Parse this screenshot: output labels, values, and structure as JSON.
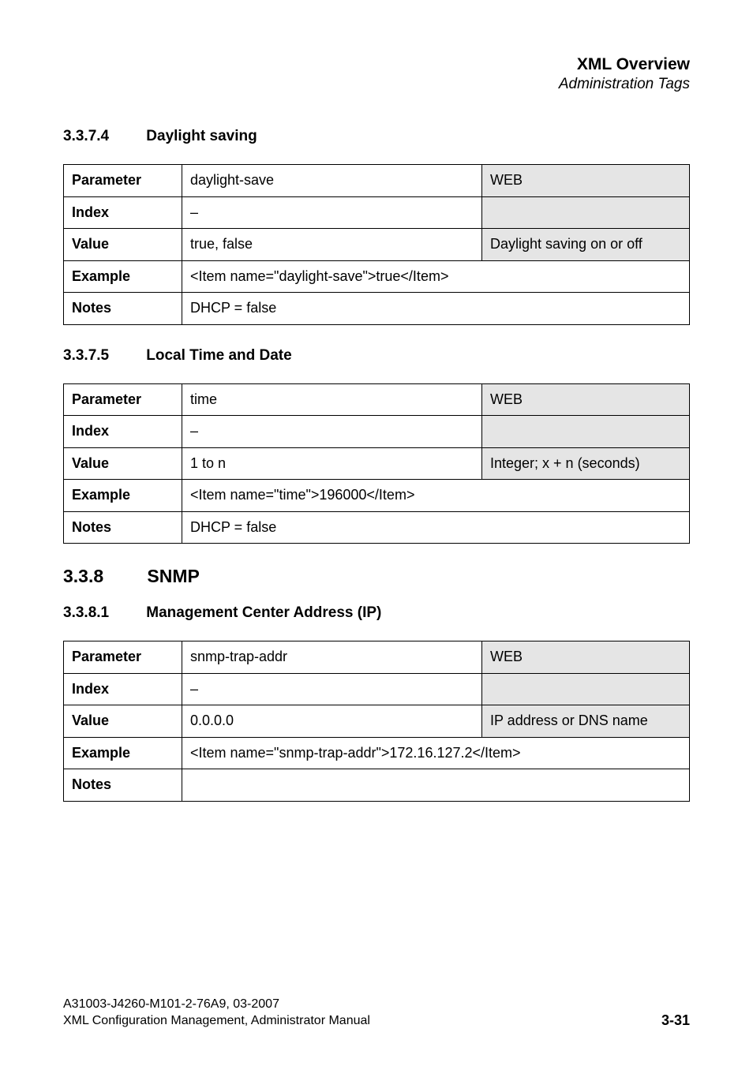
{
  "header": {
    "title": "XML Overview",
    "subtitle": "Administration Tags"
  },
  "sections": [
    {
      "number": "3.3.7.4",
      "title": "Daylight saving",
      "level": "h3",
      "table": {
        "parameter": "daylight-save",
        "parameter_right": "WEB",
        "index": "–",
        "value": "true, false",
        "value_right": "Daylight saving on or off",
        "example": "<Item name=\"daylight-save\">true</Item>",
        "notes": "DHCP = false"
      }
    },
    {
      "number": "3.3.7.5",
      "title": "Local Time and Date",
      "level": "h3",
      "table": {
        "parameter": "time",
        "parameter_right": "WEB",
        "index": "–",
        "value": "1 to n",
        "value_right": "Integer; x + n (seconds)",
        "example": "<Item name=\"time\">196000</Item>",
        "notes": "DHCP = false"
      }
    },
    {
      "number": "3.3.8",
      "title": "SNMP",
      "level": "h2"
    },
    {
      "number": "3.3.8.1",
      "title": "Management Center Address (IP)",
      "level": "h3",
      "table": {
        "parameter": "snmp-trap-addr",
        "parameter_right": "WEB",
        "index": "–",
        "value": "0.0.0.0",
        "value_right": "IP address or DNS name",
        "example": "<Item name=\"snmp-trap-addr\">172.16.127.2</Item>",
        "notes": ""
      }
    }
  ],
  "labels": {
    "parameter": "Parameter",
    "index": "Index",
    "value": "Value",
    "example": "Example",
    "notes": "Notes"
  },
  "footer": {
    "line1": "A31003-J4260-M101-2-76A9, 03-2007",
    "line2": "XML Configuration Management, Administrator Manual",
    "page": "3-31"
  }
}
